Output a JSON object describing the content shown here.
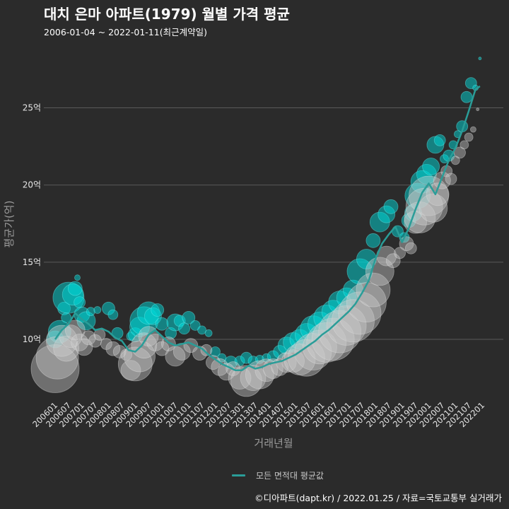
{
  "title": "대치 은마 아파트(1979) 월별 가격 평균",
  "subtitle": "2006-01-04 ~ 2022-01-11(최근계약일)",
  "caption": "©디아파트(dapt.kr) / 2022.01.25 / 자료=국토교통부 실거래가",
  "colors": {
    "background": "#2b2b2b",
    "grid": "#5a5a5a",
    "bubble_area_a": "#00d8d8",
    "bubble_area_b": "#cccccc",
    "avg_line": "#2a9d98"
  },
  "chart_data": {
    "type": "scatter",
    "title": "대치 은마 아파트(1979) 월별 가격 평균",
    "subtitle": "2006-01-04 ~ 2022-01-11(최근계약일)",
    "xlabel": "거래년월",
    "ylabel": "평균가(억)",
    "yticks": [
      10,
      15,
      20,
      25
    ],
    "ytick_labels": [
      "10억",
      "15억",
      "20억",
      "25억"
    ],
    "ylim": [
      6.6,
      28.8
    ],
    "xticks": [
      "200601",
      "200607",
      "200701",
      "200707",
      "200801",
      "200807",
      "200901",
      "200907",
      "201001",
      "201007",
      "201101",
      "201107",
      "201201",
      "201207",
      "201301",
      "201307",
      "201401",
      "201407",
      "201501",
      "201507",
      "201601",
      "201607",
      "201701",
      "201707",
      "201801",
      "201807",
      "201901",
      "201907",
      "202001",
      "202007",
      "202101",
      "202107",
      "202201"
    ],
    "grid": true,
    "legend": {
      "position": "bottom",
      "entries": [
        "모든 면적대 평균값"
      ]
    },
    "avg_line": {
      "name": "모든 면적대 평균값",
      "points": [
        [
          "200601",
          10.0
        ],
        [
          "200604",
          10.6
        ],
        [
          "200607",
          11.0
        ],
        [
          "200610",
          11.7
        ],
        [
          "200701",
          11.3
        ],
        [
          "200704",
          11.0
        ],
        [
          "200707",
          10.6
        ],
        [
          "200710",
          10.7
        ],
        [
          "200801",
          10.5
        ],
        [
          "200804",
          10.1
        ],
        [
          "200807",
          9.9
        ],
        [
          "200810",
          9.3
        ],
        [
          "200901",
          9.2
        ],
        [
          "200904",
          9.6
        ],
        [
          "200907",
          10.3
        ],
        [
          "200910",
          10.6
        ],
        [
          "201001",
          10.2
        ],
        [
          "201004",
          9.8
        ],
        [
          "201007",
          9.6
        ],
        [
          "201010",
          9.7
        ],
        [
          "201101",
          9.8
        ],
        [
          "201104",
          9.6
        ],
        [
          "201107",
          9.4
        ],
        [
          "201110",
          9.0
        ],
        [
          "201201",
          8.7
        ],
        [
          "201204",
          8.4
        ],
        [
          "201207",
          8.2
        ],
        [
          "201210",
          8.0
        ],
        [
          "201301",
          8.0
        ],
        [
          "201304",
          8.3
        ],
        [
          "201307",
          8.1
        ],
        [
          "201310",
          8.2
        ],
        [
          "201401",
          8.4
        ],
        [
          "201404",
          8.5
        ],
        [
          "201407",
          8.6
        ],
        [
          "201410",
          8.8
        ],
        [
          "201501",
          9.0
        ],
        [
          "201504",
          9.3
        ],
        [
          "201507",
          9.6
        ],
        [
          "201510",
          9.9
        ],
        [
          "201601",
          10.3
        ],
        [
          "201604",
          10.6
        ],
        [
          "201607",
          11.0
        ],
        [
          "201610",
          11.4
        ],
        [
          "201701",
          11.8
        ],
        [
          "201704",
          12.3
        ],
        [
          "201707",
          13.0
        ],
        [
          "201710",
          13.8
        ],
        [
          "201801",
          15.2
        ],
        [
          "201804",
          16.2
        ],
        [
          "201807",
          16.8
        ],
        [
          "201810",
          17.3
        ],
        [
          "201901",
          16.3
        ],
        [
          "201904",
          17.2
        ],
        [
          "201907",
          18.4
        ],
        [
          "201910",
          19.5
        ],
        [
          "202001",
          20.1
        ],
        [
          "202004",
          19.4
        ],
        [
          "202007",
          20.5
        ],
        [
          "202010",
          21.6
        ],
        [
          "202101",
          22.4
        ],
        [
          "202104",
          23.5
        ],
        [
          "202107",
          24.8
        ],
        [
          "202110",
          26.2
        ],
        [
          "202112",
          26.4
        ]
      ]
    },
    "series": [
      {
        "name": "bubble_area_a",
        "points": [
          [
            "200601",
            10.0,
            12
          ],
          [
            "200603",
            10.5,
            16
          ],
          [
            "200605",
            12.0,
            9
          ],
          [
            "200606",
            11.4,
            7
          ],
          [
            "200607",
            12.7,
            22
          ],
          [
            "200609",
            12.9,
            15
          ],
          [
            "200610",
            13.3,
            10
          ],
          [
            "200611",
            14.0,
            4
          ],
          [
            "200612",
            12.4,
            8
          ],
          [
            "200701",
            11.6,
            11
          ],
          [
            "200703",
            11.2,
            13
          ],
          [
            "200705",
            11.8,
            6
          ],
          [
            "200708",
            11.9,
            5
          ],
          [
            "200801",
            12.0,
            9
          ],
          [
            "200803",
            11.6,
            7
          ],
          [
            "200805",
            10.4,
            8
          ],
          [
            "200811",
            10.2,
            6
          ],
          [
            "200901",
            10.3,
            10
          ],
          [
            "200903",
            10.8,
            14
          ],
          [
            "200905",
            11.2,
            20
          ],
          [
            "200907",
            11.7,
            16
          ],
          [
            "200909",
            11.5,
            12
          ],
          [
            "200911",
            11.9,
            9
          ],
          [
            "201001",
            11.0,
            9
          ],
          [
            "201005",
            10.4,
            8
          ],
          [
            "201007",
            11.1,
            12
          ],
          [
            "201009",
            11.2,
            8
          ],
          [
            "201011",
            10.7,
            8
          ],
          [
            "201101",
            11.4,
            9
          ],
          [
            "201104",
            10.9,
            7
          ],
          [
            "201107",
            10.6,
            6
          ],
          [
            "201110",
            10.4,
            5
          ],
          [
            "201201",
            9.2,
            7
          ],
          [
            "201204",
            8.8,
            6
          ],
          [
            "201208",
            8.5,
            9
          ],
          [
            "201212",
            8.6,
            7
          ],
          [
            "201303",
            8.8,
            8
          ],
          [
            "201306",
            8.6,
            7
          ],
          [
            "201309",
            8.7,
            6
          ],
          [
            "201312",
            8.8,
            6
          ],
          [
            "201403",
            8.9,
            8
          ],
          [
            "201406",
            9.2,
            9
          ],
          [
            "201409",
            9.6,
            12
          ],
          [
            "201412",
            9.8,
            14
          ],
          [
            "201503",
            10.0,
            14
          ],
          [
            "201506",
            10.3,
            16
          ],
          [
            "201509",
            10.7,
            18
          ],
          [
            "201512",
            11.0,
            17
          ],
          [
            "201603",
            11.4,
            18
          ],
          [
            "201606",
            11.8,
            16
          ],
          [
            "201609",
            12.4,
            16
          ],
          [
            "201612",
            12.7,
            14
          ],
          [
            "201703",
            13.2,
            14
          ],
          [
            "201706",
            14.4,
            18
          ],
          [
            "201709",
            15.2,
            14
          ],
          [
            "201712",
            16.4,
            10
          ],
          [
            "201803",
            17.6,
            14
          ],
          [
            "201806",
            18.1,
            12
          ],
          [
            "201808",
            18.6,
            10
          ],
          [
            "201811",
            17.0,
            8
          ],
          [
            "201902",
            16.6,
            7
          ],
          [
            "201904",
            17.7,
            10
          ],
          [
            "201906",
            18.2,
            12
          ],
          [
            "201908",
            19.3,
            18
          ],
          [
            "201910",
            20.2,
            16
          ],
          [
            "201912",
            20.7,
            14
          ],
          [
            "202002",
            21.2,
            12
          ],
          [
            "202004",
            22.6,
            12
          ],
          [
            "202006",
            22.9,
            8
          ],
          [
            "202008",
            21.7,
            6
          ],
          [
            "202010",
            21.9,
            8
          ],
          [
            "202012",
            22.6,
            6
          ],
          [
            "202102",
            23.3,
            5
          ],
          [
            "202104",
            23.8,
            8
          ],
          [
            "202106",
            25.7,
            8
          ],
          [
            "202108",
            26.6,
            8
          ],
          [
            "202110",
            26.3,
            4
          ],
          [
            "202112",
            28.2,
            2
          ]
        ]
      },
      {
        "name": "bubble_area_b",
        "points": [
          [
            "200601",
            8.1,
            34
          ],
          [
            "200602",
            8.8,
            30
          ],
          [
            "200604",
            9.9,
            22
          ],
          [
            "200606",
            9.4,
            18
          ],
          [
            "200608",
            10.2,
            16
          ],
          [
            "200610",
            10.6,
            14
          ],
          [
            "200612",
            9.8,
            12
          ],
          [
            "200702",
            9.5,
            12
          ],
          [
            "200704",
            10.1,
            10
          ],
          [
            "200707",
            9.9,
            9
          ],
          [
            "200709",
            10.3,
            8
          ],
          [
            "200712",
            9.7,
            8
          ],
          [
            "200803",
            9.4,
            10
          ],
          [
            "200806",
            9.2,
            9
          ],
          [
            "200809",
            9.0,
            8
          ],
          [
            "200811",
            8.0,
            14
          ],
          [
            "200901",
            8.4,
            24
          ],
          [
            "200903",
            8.9,
            22
          ],
          [
            "200905",
            9.6,
            18
          ],
          [
            "200907",
            10.2,
            14
          ],
          [
            "200910",
            9.8,
            12
          ],
          [
            "201001",
            9.4,
            10
          ],
          [
            "201004",
            9.7,
            10
          ],
          [
            "201007",
            8.9,
            14
          ],
          [
            "201010",
            9.2,
            12
          ],
          [
            "201102",
            9.6,
            10
          ],
          [
            "201106",
            9.1,
            10
          ],
          [
            "201109",
            9.3,
            8
          ],
          [
            "201112",
            8.5,
            10
          ],
          [
            "201203",
            8.2,
            12
          ],
          [
            "201206",
            7.9,
            12
          ],
          [
            "201209",
            8.1,
            10
          ],
          [
            "201212",
            7.5,
            16
          ],
          [
            "201303",
            7.3,
            22
          ],
          [
            "201306",
            7.5,
            18
          ],
          [
            "201309",
            7.7,
            20
          ],
          [
            "201312",
            8.0,
            16
          ],
          [
            "201403",
            8.1,
            14
          ],
          [
            "201406",
            8.2,
            12
          ],
          [
            "201409",
            8.5,
            14
          ],
          [
            "201412",
            8.6,
            16
          ],
          [
            "201503",
            8.7,
            22
          ],
          [
            "201506",
            8.8,
            26
          ],
          [
            "201509",
            9.2,
            26
          ],
          [
            "201512",
            9.5,
            24
          ],
          [
            "201603",
            9.8,
            28
          ],
          [
            "201606",
            10.0,
            30
          ],
          [
            "201609",
            10.5,
            30
          ],
          [
            "201612",
            10.9,
            28
          ],
          [
            "201703",
            11.2,
            30
          ],
          [
            "201706",
            11.7,
            30
          ],
          [
            "201709",
            12.4,
            28
          ],
          [
            "201712",
            13.2,
            24
          ],
          [
            "201803",
            14.4,
            20
          ],
          [
            "201806",
            15.4,
            14
          ],
          [
            "201809",
            15.1,
            10
          ],
          [
            "201812",
            15.6,
            8
          ],
          [
            "201903",
            16.2,
            10
          ],
          [
            "201905",
            15.9,
            8
          ],
          [
            "201907",
            17.6,
            16
          ],
          [
            "201909",
            17.9,
            22
          ],
          [
            "201911",
            18.6,
            26
          ],
          [
            "202001",
            19.3,
            28
          ],
          [
            "202003",
            18.5,
            20
          ],
          [
            "202005",
            19.4,
            16
          ],
          [
            "202007",
            20.3,
            12
          ],
          [
            "202009",
            20.9,
            8
          ],
          [
            "202011",
            20.4,
            8
          ],
          [
            "202101",
            21.6,
            6
          ],
          [
            "202103",
            22.1,
            8
          ],
          [
            "202105",
            22.6,
            6
          ],
          [
            "202107",
            23.1,
            6
          ],
          [
            "202109",
            23.6,
            4
          ],
          [
            "202111",
            24.9,
            2
          ]
        ]
      }
    ]
  }
}
